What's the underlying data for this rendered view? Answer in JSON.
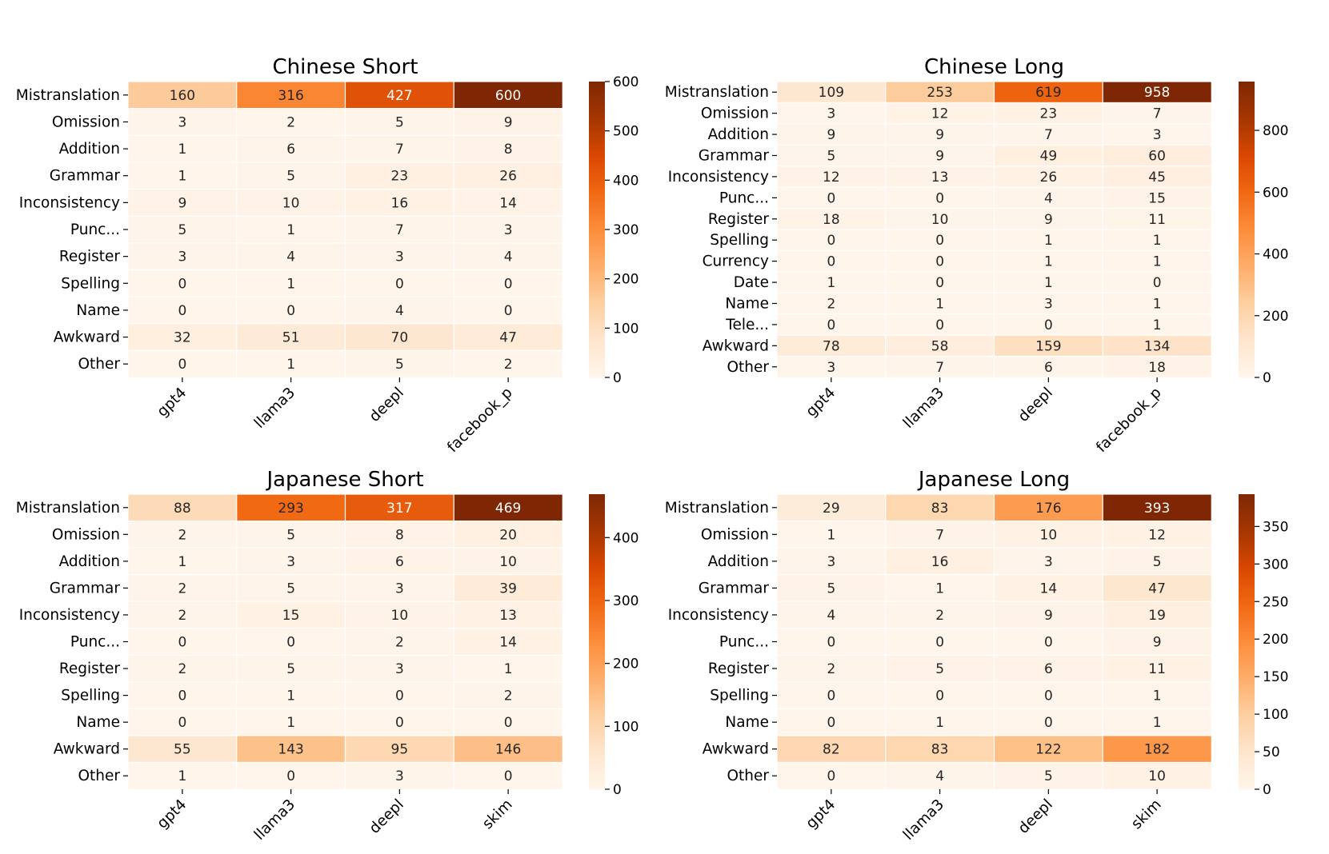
{
  "colors": {
    "colormap": "Oranges",
    "stops": [
      "#fff5eb",
      "#fee6ce",
      "#fdd0a2",
      "#fdae6b",
      "#fd8d3c",
      "#f16913",
      "#d94801",
      "#a63603",
      "#7f2704"
    ]
  },
  "chart_data": [
    {
      "type": "heatmap",
      "title": "Chinese Short",
      "rows": [
        "Mistranslation",
        "Omission",
        "Addition",
        "Grammar",
        "Inconsistency",
        "Punc...",
        "Register",
        "Spelling",
        "Name",
        "Awkward",
        "Other"
      ],
      "columns": [
        "gpt4",
        "llama3",
        "deepl",
        "facebook_p"
      ],
      "values": [
        [
          160,
          316,
          427,
          600
        ],
        [
          3,
          2,
          5,
          9
        ],
        [
          1,
          6,
          7,
          8
        ],
        [
          1,
          5,
          23,
          26
        ],
        [
          9,
          10,
          16,
          14
        ],
        [
          5,
          1,
          7,
          3
        ],
        [
          3,
          4,
          3,
          4
        ],
        [
          0,
          1,
          0,
          0
        ],
        [
          0,
          0,
          4,
          0
        ],
        [
          32,
          51,
          70,
          47
        ],
        [
          0,
          1,
          5,
          2
        ]
      ],
      "vmin": 0,
      "vmax": 600,
      "colorbar_ticks": [
        0,
        100,
        200,
        300,
        400,
        500,
        600
      ]
    },
    {
      "type": "heatmap",
      "title": "Chinese Long",
      "rows": [
        "Mistranslation",
        "Omission",
        "Addition",
        "Grammar",
        "Inconsistency",
        "Punc...",
        "Register",
        "Spelling",
        "Currency",
        "Date",
        "Name",
        "Tele...",
        "Awkward",
        "Other"
      ],
      "columns": [
        "gpt4",
        "llama3",
        "deepl",
        "facebook_p"
      ],
      "values": [
        [
          109,
          253,
          619,
          958
        ],
        [
          3,
          12,
          23,
          7
        ],
        [
          9,
          9,
          7,
          3
        ],
        [
          5,
          9,
          49,
          60
        ],
        [
          12,
          13,
          26,
          45
        ],
        [
          0,
          0,
          4,
          15
        ],
        [
          18,
          10,
          9,
          11
        ],
        [
          0,
          0,
          1,
          1
        ],
        [
          0,
          0,
          1,
          1
        ],
        [
          1,
          0,
          1,
          0
        ],
        [
          2,
          1,
          3,
          1
        ],
        [
          0,
          0,
          0,
          1
        ],
        [
          78,
          58,
          159,
          134
        ],
        [
          3,
          7,
          6,
          18
        ]
      ],
      "vmin": 0,
      "vmax": 958,
      "colorbar_ticks": [
        0,
        200,
        400,
        600,
        800
      ]
    },
    {
      "type": "heatmap",
      "title": "Japanese Short",
      "rows": [
        "Mistranslation",
        "Omission",
        "Addition",
        "Grammar",
        "Inconsistency",
        "Punc...",
        "Register",
        "Spelling",
        "Name",
        "Awkward",
        "Other"
      ],
      "columns": [
        "gpt4",
        "llama3",
        "deepl",
        "skim"
      ],
      "values": [
        [
          88,
          293,
          317,
          469
        ],
        [
          2,
          5,
          8,
          20
        ],
        [
          1,
          3,
          6,
          10
        ],
        [
          2,
          5,
          3,
          39
        ],
        [
          2,
          15,
          10,
          13
        ],
        [
          0,
          0,
          2,
          14
        ],
        [
          2,
          5,
          3,
          1
        ],
        [
          0,
          1,
          0,
          2
        ],
        [
          0,
          1,
          0,
          0
        ],
        [
          55,
          143,
          95,
          146
        ],
        [
          1,
          0,
          3,
          0
        ]
      ],
      "vmin": 0,
      "vmax": 469,
      "colorbar_ticks": [
        0,
        100,
        200,
        300,
        400
      ]
    },
    {
      "type": "heatmap",
      "title": "Japanese Long",
      "rows": [
        "Mistranslation",
        "Omission",
        "Addition",
        "Grammar",
        "Inconsistency",
        "Punc...",
        "Register",
        "Spelling",
        "Name",
        "Awkward",
        "Other"
      ],
      "columns": [
        "gpt4",
        "llama3",
        "deepl",
        "skim"
      ],
      "values": [
        [
          29,
          83,
          176,
          393
        ],
        [
          1,
          7,
          10,
          12
        ],
        [
          3,
          16,
          3,
          5
        ],
        [
          5,
          1,
          14,
          47
        ],
        [
          4,
          2,
          9,
          19
        ],
        [
          0,
          0,
          0,
          9
        ],
        [
          2,
          5,
          6,
          11
        ],
        [
          0,
          0,
          0,
          1
        ],
        [
          0,
          1,
          0,
          1
        ],
        [
          82,
          83,
          122,
          182
        ],
        [
          0,
          4,
          5,
          10
        ]
      ],
      "vmin": 0,
      "vmax": 393,
      "colorbar_ticks": [
        0,
        50,
        100,
        150,
        200,
        250,
        300,
        350
      ]
    }
  ]
}
